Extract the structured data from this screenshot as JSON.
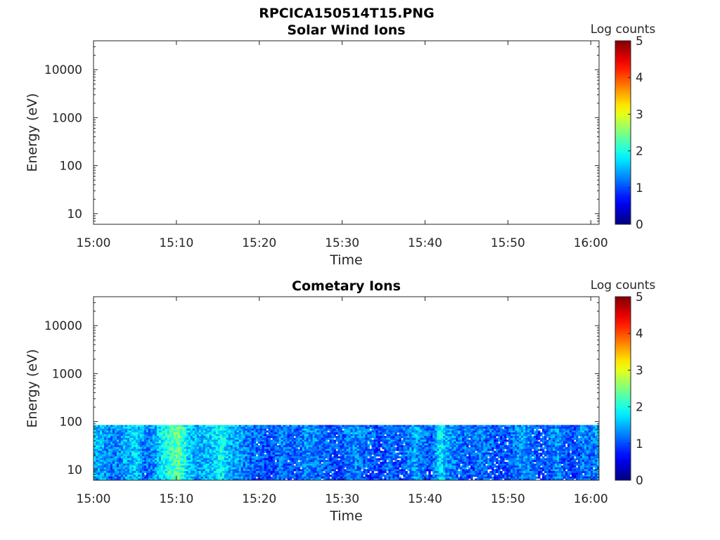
{
  "figure": {
    "title": "RPCICA150514T15.PNG",
    "background": "#ffffff"
  },
  "chart_data": [
    {
      "type": "heatmap",
      "title": "Solar Wind Ions",
      "xlabel": "Time",
      "ylabel": "Energy (eV)",
      "x_ticks": [
        "15:00",
        "15:10",
        "15:20",
        "15:30",
        "15:40",
        "15:50",
        "16:00"
      ],
      "x_range_minutes": [
        0,
        61
      ],
      "y_scale": "log",
      "y_ticks": [
        10,
        100,
        1000,
        10000
      ],
      "y_tick_labels": [
        "10",
        "100",
        "1000",
        "10000"
      ],
      "y_range": [
        6,
        40000
      ],
      "colorbar": {
        "label": "Log counts",
        "range": [
          0,
          5
        ],
        "ticks": [
          "0",
          "1",
          "2",
          "3",
          "4",
          "5"
        ],
        "colormap": "jet"
      },
      "data_extent": null,
      "note_data": "empty panel"
    },
    {
      "type": "heatmap",
      "title": "Cometary Ions",
      "xlabel": "Time",
      "ylabel": "Energy (eV)",
      "x_ticks": [
        "15:00",
        "15:10",
        "15:20",
        "15:30",
        "15:40",
        "15:50",
        "16:00"
      ],
      "x_range_minutes": [
        0,
        61
      ],
      "y_scale": "log",
      "y_ticks": [
        10,
        100,
        1000,
        10000
      ],
      "y_tick_labels": [
        "10",
        "100",
        "1000",
        "10000"
      ],
      "y_range": [
        6,
        40000
      ],
      "colorbar": {
        "label": "Log counts",
        "range": [
          0,
          5
        ],
        "ticks": [
          "0",
          "1",
          "2",
          "3",
          "4",
          "5"
        ],
        "colormap": "jet"
      },
      "data_extent": {
        "energy_min_eV": 6,
        "energy_max_eV": 85,
        "time_start_min": 0,
        "time_end_min": 61
      },
      "column_mean_log_counts": [
        1.6,
        1.5,
        1.3,
        1.4,
        1.6,
        1.7,
        1.3,
        1.4,
        1.9,
        2.2,
        2.5,
        1.8,
        1.5,
        1.6,
        1.7,
        2.0,
        1.6,
        1.5,
        1.3,
        1.2,
        1.1,
        1.0,
        1.3,
        1.2,
        1.1,
        1.4,
        1.3,
        1.2,
        1.1,
        1.0,
        1.3,
        1.4,
        1.2,
        1.1,
        1.0,
        1.3,
        1.0,
        1.2,
        1.5,
        1.3,
        1.1,
        1.9,
        1.4,
        1.3,
        1.2,
        1.1,
        1.3,
        1.2,
        1.0,
        1.1,
        1.3,
        1.5,
        1.2,
        1.0,
        1.2,
        1.4,
        1.1,
        1.0,
        1.3,
        1.2,
        1.5
      ]
    }
  ]
}
